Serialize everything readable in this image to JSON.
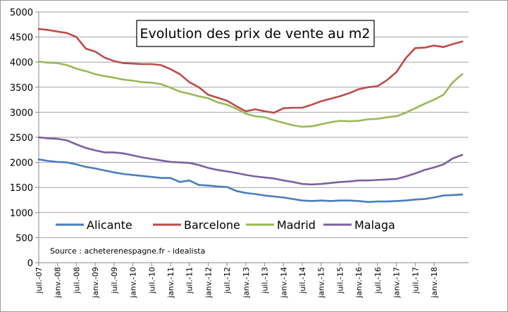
{
  "chart_data": {
    "type": "line",
    "title": "Evolution des prix de vente au m2",
    "source": "Source : acheterenespagne.fr - idealista",
    "xlabel": "",
    "ylabel": "",
    "ylim": [
      0,
      5000
    ],
    "yticks": [
      0,
      500,
      1000,
      1500,
      2000,
      2500,
      3000,
      3500,
      4000,
      4500,
      5000
    ],
    "grid": true,
    "legend_position": "bottom-left",
    "x_tick_labels": [
      "juil.-07",
      "janv.-08",
      "juil.-08",
      "janv.-09",
      "juil.-09",
      "janv.-10",
      "juil.-10",
      "janv.-11",
      "juil.-11",
      "janv.-12",
      "juil.-12",
      "janv.-13",
      "juil.-13",
      "janv.-14",
      "juil.-14",
      "janv.-15",
      "juil.-15",
      "janv.-16",
      "juil.-16",
      "janv.-17",
      "juil.-17",
      "janv.-18"
    ],
    "x": [
      "2007-07",
      "2007-10",
      "2008-01",
      "2008-04",
      "2008-07",
      "2008-10",
      "2009-01",
      "2009-04",
      "2009-07",
      "2009-10",
      "2010-01",
      "2010-04",
      "2010-07",
      "2010-10",
      "2011-01",
      "2011-04",
      "2011-07",
      "2011-10",
      "2012-01",
      "2012-04",
      "2012-07",
      "2012-10",
      "2013-01",
      "2013-04",
      "2013-07",
      "2013-10",
      "2014-01",
      "2014-04",
      "2014-07",
      "2014-10",
      "2015-01",
      "2015-04",
      "2015-07",
      "2015-10",
      "2016-01",
      "2016-04",
      "2016-07",
      "2016-10",
      "2017-01",
      "2017-04",
      "2017-07",
      "2017-10",
      "2018-01",
      "2018-04",
      "2018-07",
      "2018-10"
    ],
    "series": [
      {
        "name": "Alicante",
        "color": "#4a7ebb",
        "values": [
          2060,
          2030,
          2010,
          2000,
          1960,
          1910,
          1880,
          1840,
          1800,
          1770,
          1750,
          1730,
          1710,
          1690,
          1690,
          1610,
          1640,
          1550,
          1540,
          1520,
          1510,
          1430,
          1390,
          1370,
          1340,
          1320,
          1300,
          1270,
          1240,
          1230,
          1240,
          1230,
          1240,
          1240,
          1230,
          1210,
          1220,
          1220,
          1230,
          1240,
          1260,
          1270,
          1300,
          1340,
          1350,
          1360
        ]
      },
      {
        "name": "Barcelone",
        "color": "#be4b48",
        "values": [
          4660,
          4640,
          4610,
          4580,
          4500,
          4270,
          4210,
          4090,
          4020,
          3980,
          3970,
          3960,
          3960,
          3940,
          3860,
          3760,
          3600,
          3500,
          3350,
          3290,
          3230,
          3120,
          3020,
          3060,
          3020,
          2990,
          3080,
          3090,
          3090,
          3150,
          3220,
          3270,
          3320,
          3380,
          3460,
          3500,
          3520,
          3640,
          3800,
          4080,
          4280,
          4290,
          4330,
          4300,
          4360,
          4410
        ]
      },
      {
        "name": "Madrid",
        "color": "#98b954",
        "values": [
          4010,
          3990,
          3980,
          3940,
          3870,
          3820,
          3760,
          3720,
          3690,
          3650,
          3630,
          3600,
          3590,
          3560,
          3490,
          3410,
          3370,
          3320,
          3280,
          3200,
          3150,
          3070,
          2970,
          2920,
          2900,
          2840,
          2790,
          2740,
          2710,
          2720,
          2760,
          2800,
          2830,
          2820,
          2830,
          2860,
          2870,
          2900,
          2920,
          2990,
          3080,
          3170,
          3250,
          3350,
          3600,
          3760
        ]
      },
      {
        "name": "Malaga",
        "color": "#7d5fa0",
        "values": [
          2500,
          2480,
          2470,
          2440,
          2360,
          2290,
          2240,
          2200,
          2200,
          2180,
          2140,
          2100,
          2070,
          2040,
          2010,
          2000,
          1990,
          1950,
          1890,
          1850,
          1820,
          1790,
          1750,
          1720,
          1700,
          1680,
          1640,
          1610,
          1570,
          1560,
          1570,
          1590,
          1610,
          1620,
          1640,
          1640,
          1650,
          1660,
          1670,
          1720,
          1780,
          1850,
          1900,
          1960,
          2080,
          2150
        ]
      }
    ]
  }
}
